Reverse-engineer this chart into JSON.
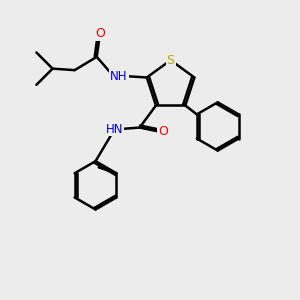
{
  "bg_color": "#ececec",
  "atom_colors": {
    "C": "#000000",
    "H": "#000000",
    "N": "#0000cc",
    "O": "#ff0000",
    "S": "#bbaa00"
  },
  "bond_color": "#000000",
  "bond_width": 1.8,
  "fig_w": 3.0,
  "fig_h": 3.0,
  "dpi": 100,
  "xlim": [
    0,
    10
  ],
  "ylim": [
    0,
    10
  ],
  "label_fontsize": 8.5
}
